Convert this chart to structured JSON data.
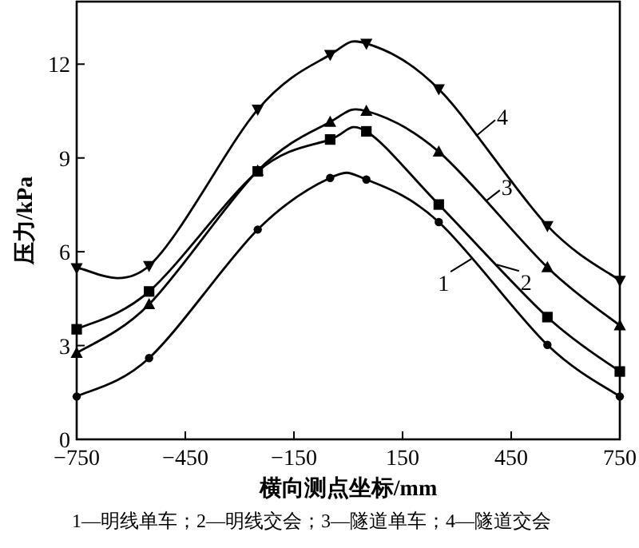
{
  "chart_data": {
    "type": "line",
    "xlabel": "横向测点坐标/mm",
    "ylabel": "压力/kPa",
    "annotations": [
      "1—明线单车；2—明线交会；3—隧道单车；4—隧道交会"
    ],
    "x": [
      -750,
      -550,
      -250,
      -50,
      50,
      250,
      550,
      750
    ],
    "xlim": [
      -750,
      750
    ],
    "xticks": [
      -750,
      -450,
      -150,
      150,
      450,
      750
    ],
    "ylim": [
      0,
      14
    ],
    "yticks": [
      0,
      3,
      6,
      9,
      12
    ],
    "grid": false,
    "legend": "right",
    "line_style": "solid",
    "series": [
      {
        "name": "1",
        "color": "#000000",
        "marker": "circle",
        "values": [
          1.37,
          2.6,
          6.71,
          8.36,
          8.31,
          6.95,
          3.02,
          1.37
        ]
      },
      {
        "name": "2",
        "color": "#000000",
        "marker": "square",
        "values": [
          3.52,
          4.73,
          8.57,
          9.59,
          9.85,
          7.51,
          3.91,
          2.17
        ]
      },
      {
        "name": "3",
        "color": "#000000",
        "marker": "triangle",
        "values": [
          2.76,
          4.32,
          8.59,
          10.15,
          10.5,
          9.2,
          5.5,
          3.64
        ]
      },
      {
        "name": "4",
        "color": "#000000",
        "marker": "triangle-down",
        "values": [
          5.48,
          5.55,
          10.55,
          12.3,
          12.66,
          11.2,
          6.83,
          5.08
        ]
      }
    ]
  }
}
